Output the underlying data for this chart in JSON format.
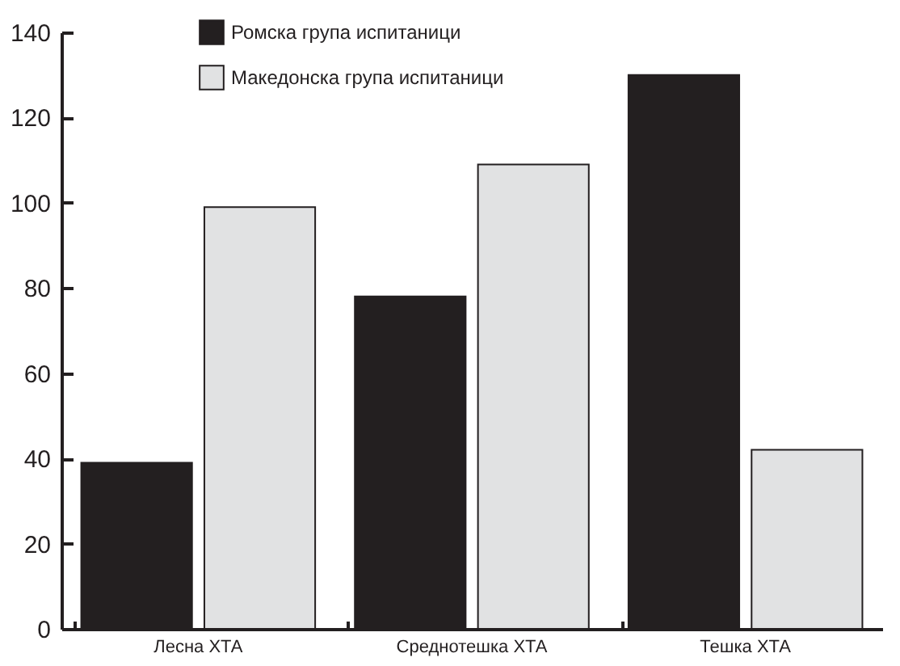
{
  "chart_data": {
    "type": "bar",
    "categories": [
      "Лесна ХТА",
      "Среднотешка ХТА",
      "Тешка ХТА"
    ],
    "series": [
      {
        "name": "Ромска група испитаници",
        "color": "#231f20",
        "values": [
          39,
          78,
          130
        ]
      },
      {
        "name": "Македонска група испитаници",
        "color": "#e1e2e3",
        "values": [
          99,
          109,
          42
        ]
      }
    ],
    "ylim": [
      0,
      140
    ],
    "yticks": [
      0,
      20,
      40,
      60,
      80,
      100,
      120,
      140
    ],
    "grid": false,
    "legend": "top left"
  }
}
